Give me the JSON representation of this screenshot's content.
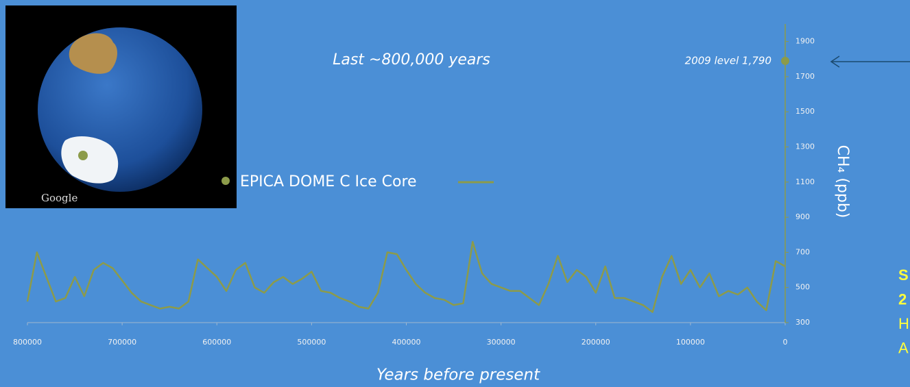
{
  "chart_data": {
    "type": "line",
    "title": "Last ~800,000 years",
    "x_label": "Years before present",
    "y_label": "CH₄ (ppb)",
    "x": [
      800000,
      790000,
      780000,
      770000,
      760000,
      750000,
      740000,
      730000,
      720000,
      710000,
      700000,
      690000,
      680000,
      670000,
      660000,
      650000,
      640000,
      630000,
      620000,
      610000,
      600000,
      590000,
      580000,
      570000,
      560000,
      550000,
      540000,
      530000,
      520000,
      510000,
      500000,
      490000,
      480000,
      470000,
      460000,
      450000,
      440000,
      430000,
      420000,
      410000,
      400000,
      390000,
      380000,
      370000,
      360000,
      350000,
      340000,
      330000,
      320000,
      310000,
      300000,
      290000,
      280000,
      270000,
      260000,
      250000,
      240000,
      230000,
      220000,
      210000,
      200000,
      190000,
      180000,
      170000,
      160000,
      150000,
      140000,
      130000,
      120000,
      110000,
      100000,
      90000,
      80000,
      70000,
      60000,
      50000,
      40000,
      30000,
      20000,
      10000,
      0
    ],
    "series": [
      {
        "name": "EPICA DOME C Ice Core",
        "color": "#8c9b4a",
        "values": [
          420,
          700,
          560,
          420,
          440,
          560,
          450,
          600,
          640,
          610,
          540,
          470,
          420,
          400,
          380,
          390,
          380,
          420,
          660,
          610,
          560,
          480,
          600,
          640,
          500,
          470,
          530,
          560,
          520,
          550,
          590,
          480,
          470,
          440,
          420,
          390,
          380,
          470,
          700,
          690,
          600,
          520,
          470,
          440,
          430,
          400,
          410,
          760,
          580,
          520,
          500,
          480,
          480,
          440,
          400,
          520,
          680,
          530,
          600,
          560,
          470,
          620,
          440,
          440,
          420,
          400,
          360,
          560,
          680,
          520,
          600,
          500,
          580,
          450,
          480,
          460,
          500,
          420,
          370,
          650,
          620
        ]
      }
    ],
    "point": {
      "label": "2009 level 1,790",
      "value": 1790,
      "color": "#8c9b4a"
    },
    "xlim": [
      800000,
      0
    ],
    "xticks": [
      800000,
      700000,
      600000,
      500000,
      400000,
      300000,
      200000,
      100000,
      0
    ],
    "ylim": [
      300,
      2000
    ],
    "yticks": [
      300,
      500,
      700,
      900,
      1100,
      1300,
      1500,
      1700,
      1900
    ],
    "y_axis_side": "right"
  },
  "inset": {
    "credit": "Google"
  },
  "side_note": [
    "S",
    "2",
    "H",
    "A"
  ]
}
